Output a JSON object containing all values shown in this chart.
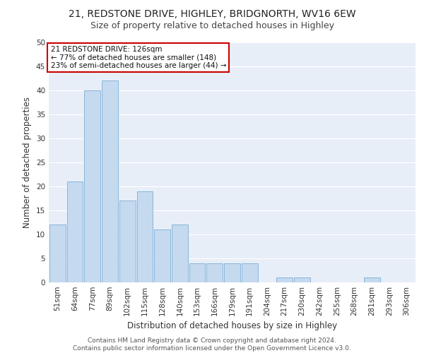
{
  "title_line1": "21, REDSTONE DRIVE, HIGHLEY, BRIDGNORTH, WV16 6EW",
  "title_line2": "Size of property relative to detached houses in Highley",
  "xlabel": "Distribution of detached houses by size in Highley",
  "ylabel": "Number of detached properties",
  "categories": [
    "51sqm",
    "64sqm",
    "77sqm",
    "89sqm",
    "102sqm",
    "115sqm",
    "128sqm",
    "140sqm",
    "153sqm",
    "166sqm",
    "179sqm",
    "191sqm",
    "204sqm",
    "217sqm",
    "230sqm",
    "242sqm",
    "255sqm",
    "268sqm",
    "281sqm",
    "293sqm",
    "306sqm"
  ],
  "values": [
    12,
    21,
    40,
    42,
    17,
    19,
    11,
    12,
    4,
    4,
    4,
    4,
    0,
    1,
    1,
    0,
    0,
    0,
    1,
    0,
    0
  ],
  "bar_color": "#c5d9ef",
  "bar_edge_color": "#7aafd4",
  "highlight_bar_index": 6,
  "annotation_text": "21 REDSTONE DRIVE: 126sqm\n← 77% of detached houses are smaller (148)\n23% of semi-detached houses are larger (44) →",
  "annotation_box_facecolor": "#ffffff",
  "annotation_box_edgecolor": "#cc0000",
  "ylim": [
    0,
    50
  ],
  "yticks": [
    0,
    5,
    10,
    15,
    20,
    25,
    30,
    35,
    40,
    45,
    50
  ],
  "background_color": "#e8eef8",
  "grid_color": "#ffffff",
  "footer_line1": "Contains HM Land Registry data © Crown copyright and database right 2024.",
  "footer_line2": "Contains public sector information licensed under the Open Government Licence v3.0.",
  "title_fontsize": 10,
  "subtitle_fontsize": 9,
  "axis_label_fontsize": 8.5,
  "tick_fontsize": 7.5,
  "annotation_fontsize": 7.5,
  "footer_fontsize": 6.5
}
